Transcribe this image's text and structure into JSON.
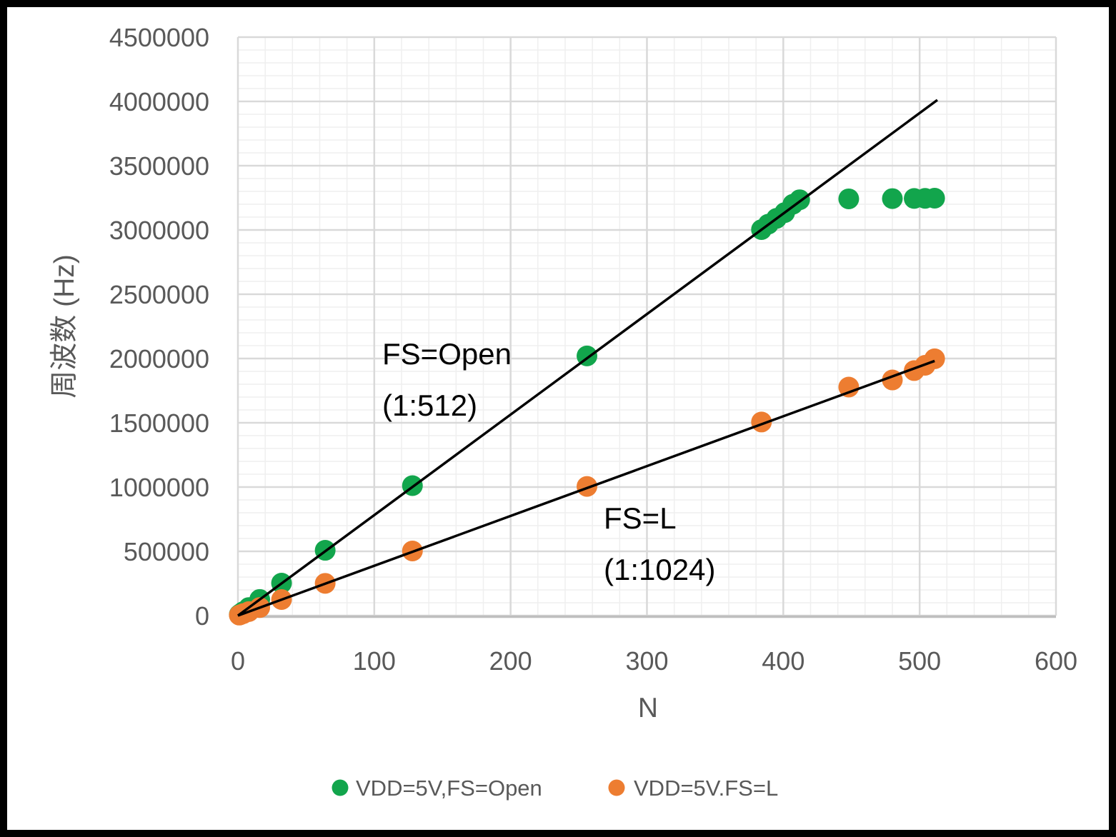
{
  "chart_data": {
    "type": "scatter",
    "title": "",
    "xlabel": "N",
    "ylabel": "周波数 (Hz)",
    "xlim": [
      0,
      600
    ],
    "ylim": [
      0,
      4500000
    ],
    "x_major_ticks": [
      "0",
      "100",
      "200",
      "300",
      "400",
      "500",
      "600"
    ],
    "y_major_ticks": [
      "0",
      "500000",
      "1000000",
      "1500000",
      "2000000",
      "2500000",
      "3000000",
      "3500000",
      "4000000",
      "4500000"
    ],
    "x_minor_unit": 20,
    "y_minor_unit": 100000,
    "grid": {
      "major_color": "#D9D9D9",
      "minor_color": "#EFEFEF",
      "axis_line_color": "#BFBFBF",
      "grid_on": true
    },
    "text_color": "#595959",
    "series": [
      {
        "name": "VDD=5V,FS=Open",
        "color": "#12A54C",
        "points": [
          [
            1,
            7800
          ],
          [
            2,
            15700
          ],
          [
            4,
            31400
          ],
          [
            8,
            62800
          ],
          [
            16,
            126000
          ],
          [
            32,
            253000
          ],
          [
            64,
            508000
          ],
          [
            128,
            1011000
          ],
          [
            256,
            2020000
          ],
          [
            384,
            3003000
          ],
          [
            389,
            3045000
          ],
          [
            395,
            3090000
          ],
          [
            401,
            3135000
          ],
          [
            407,
            3200000
          ],
          [
            412,
            3235000
          ],
          [
            448,
            3242000
          ],
          [
            480,
            3244000
          ],
          [
            496,
            3245000
          ],
          [
            504,
            3246000
          ],
          [
            511,
            3247000
          ]
        ]
      },
      {
        "name": "VDD=5V.FS=L",
        "color": "#ED7D31",
        "points": [
          [
            1,
            3900
          ],
          [
            2,
            7800
          ],
          [
            4,
            15700
          ],
          [
            8,
            31400
          ],
          [
            16,
            62800
          ],
          [
            32,
            125000
          ],
          [
            64,
            251000
          ],
          [
            128,
            503000
          ],
          [
            256,
            1005000
          ],
          [
            384,
            1506000
          ],
          [
            448,
            1778000
          ],
          [
            480,
            1833000
          ],
          [
            496,
            1906000
          ],
          [
            504,
            1947000
          ],
          [
            511,
            1998000
          ]
        ]
      }
    ],
    "trendlines": [
      {
        "name": "linear-fit-fs-open",
        "color": "#000000",
        "from": [
          0,
          0
        ],
        "to": [
          513,
          4011000
        ]
      },
      {
        "name": "linear-fit-fs-l",
        "color": "#000000",
        "from": [
          0,
          0
        ],
        "to": [
          511,
          1981000
        ]
      }
    ],
    "annotations": [
      {
        "lines": [
          "FS=Open",
          "(1:512)"
        ]
      },
      {
        "lines": [
          "FS=L",
          "(1:1024)"
        ]
      }
    ],
    "legend": {
      "position": "bottom",
      "items": [
        {
          "label": "VDD=5V,FS=Open",
          "color": "#12A54C"
        },
        {
          "label": "VDD=5V.FS=L",
          "color": "#ED7D31"
        }
      ]
    }
  }
}
